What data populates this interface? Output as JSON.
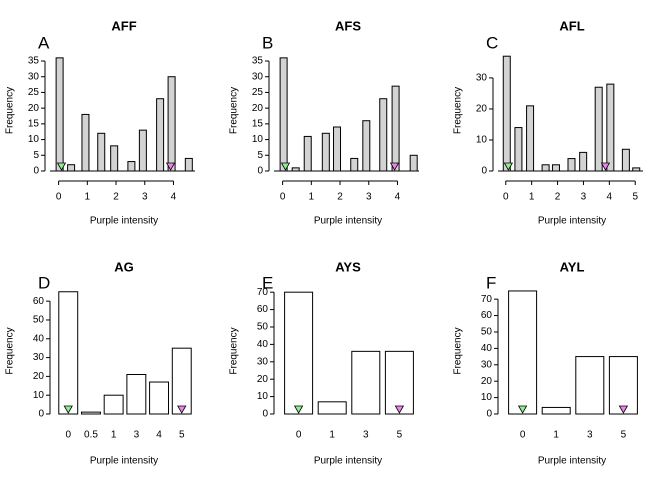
{
  "chart_data": [
    {
      "type": "bar",
      "title": "AFF",
      "panel_label": "A",
      "xlabel": "Purple intensity",
      "ylabel": "Frequency",
      "x": [
        0,
        0.4,
        0.9,
        1.45,
        1.9,
        2.5,
        2.9,
        3.5,
        3.9,
        4.5
      ],
      "values": [
        36,
        2,
        18,
        12,
        8,
        3,
        13,
        23,
        30,
        4
      ],
      "color": "#d3d3d3",
      "xlim": [
        -0.3,
        4.75
      ],
      "xticks": [
        0,
        1,
        2,
        3,
        4
      ],
      "ylim": [
        0,
        38.5
      ],
      "yticks": [
        0,
        5,
        10,
        15,
        20,
        25,
        30,
        35
      ],
      "markers": [
        {
          "x": 0.1,
          "color": "#90ee90"
        },
        {
          "x": 3.9,
          "color": "#ee82ee"
        }
      ]
    },
    {
      "type": "bar",
      "title": "AFS",
      "panel_label": "B",
      "xlabel": "Purple intensity",
      "ylabel": "Frequency",
      "x": [
        0,
        0.42,
        0.84,
        1.47,
        1.86,
        2.46,
        2.88,
        3.47,
        3.9,
        4.53
      ],
      "values": [
        36,
        1,
        11,
        12,
        14,
        4,
        16,
        23,
        27,
        5
      ],
      "color": "#d3d3d3",
      "xlim": [
        -0.3,
        4.75
      ],
      "xticks": [
        0,
        1,
        2,
        3,
        4
      ],
      "ylim": [
        0,
        38.5
      ],
      "yticks": [
        0,
        5,
        10,
        15,
        20,
        25,
        30,
        35
      ],
      "markers": [
        {
          "x": 0.1,
          "color": "#90ee90"
        },
        {
          "x": 3.9,
          "color": "#ee82ee"
        }
      ]
    },
    {
      "type": "bar",
      "title": "AFL",
      "panel_label": "C",
      "xlabel": "Purple intensity",
      "ylabel": "Frequency",
      "x": [
        0,
        0.45,
        0.9,
        1.5,
        1.9,
        2.5,
        2.95,
        3.55,
        4,
        4.6,
        5
      ],
      "values": [
        37,
        14,
        21,
        2,
        2,
        4,
        6,
        27,
        28,
        7,
        1
      ],
      "color": "#d3d3d3",
      "xlim": [
        -0.3,
        5.3
      ],
      "xticks": [
        0,
        1,
        2,
        3,
        4,
        5
      ],
      "ylim": [
        0,
        39
      ],
      "yticks": [
        0,
        10,
        20,
        30
      ],
      "markers": [
        {
          "x": 0.1,
          "color": "#90ee90"
        },
        {
          "x": 3.85,
          "color": "#ee82ee"
        }
      ]
    },
    {
      "type": "bar",
      "title": "AG",
      "panel_label": "D",
      "xlabel": "Purple intensity",
      "ylabel": "Frequency",
      "categories": [
        "0",
        "0.5",
        "1",
        "3",
        "4",
        "5"
      ],
      "values": [
        65,
        1,
        10,
        21,
        17,
        35
      ],
      "color": "#ffffff",
      "ylim": [
        0,
        67
      ],
      "yticks": [
        0,
        10,
        20,
        30,
        40,
        50,
        60
      ],
      "markers": [
        {
          "x": 0,
          "color": "#90ee90"
        },
        {
          "x": 5,
          "color": "#ee82ee"
        }
      ]
    },
    {
      "type": "bar",
      "title": "AYS",
      "panel_label": "E",
      "xlabel": "Purple intensity",
      "ylabel": "Frequency",
      "categories": [
        "0",
        "1",
        "3",
        "5"
      ],
      "values": [
        70,
        7,
        36,
        36
      ],
      "color": "#ffffff",
      "ylim": [
        0,
        72.4
      ],
      "yticks": [
        0,
        10,
        20,
        30,
        40,
        50,
        60,
        70
      ],
      "markers": [
        {
          "x": 0,
          "color": "#90ee90"
        },
        {
          "x": 3,
          "color": "#ee82ee"
        }
      ]
    },
    {
      "type": "bar",
      "title": "AYL",
      "panel_label": "F",
      "xlabel": "Purple intensity",
      "ylabel": "Frequency",
      "categories": [
        "0",
        "1",
        "3",
        "5"
      ],
      "values": [
        75,
        4,
        35,
        35
      ],
      "color": "#ffffff",
      "ylim": [
        0,
        76.8
      ],
      "yticks": [
        0,
        10,
        20,
        30,
        40,
        50,
        60,
        70
      ],
      "markers": [
        {
          "x": 0,
          "color": "#90ee90"
        },
        {
          "x": 3,
          "color": "#ee82ee"
        }
      ]
    }
  ]
}
